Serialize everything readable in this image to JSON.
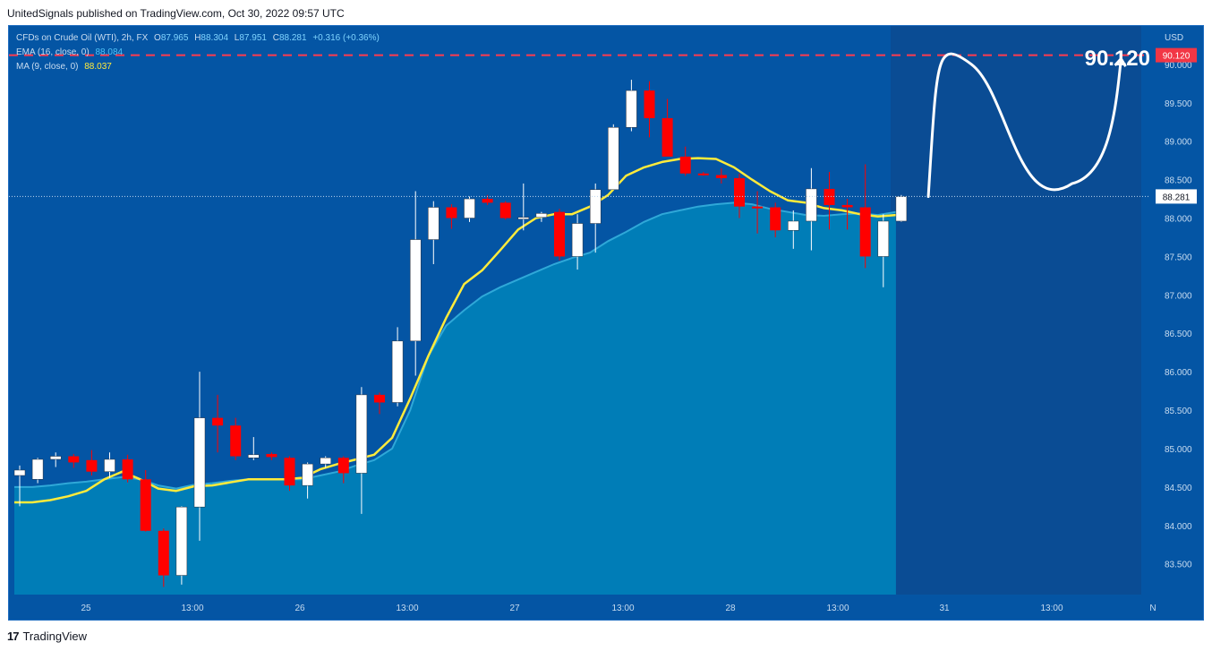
{
  "header": {
    "published": "UnitedSignals published on TradingView.com, Oct 30, 2022 09:57 UTC"
  },
  "legend": {
    "symbol": "CFDs on Crude Oil (WTI), 2h, FX",
    "o_label": "O",
    "o_value": "87.965",
    "h_label": "H",
    "h_value": "88.304",
    "l_label": "L",
    "l_value": "87.951",
    "c_label": "C",
    "c_value": "88.281",
    "change": "+0.316 (+0.36%)",
    "ema_label": "EMA (16, close, 0)",
    "ema_value": "88.084",
    "ma_label": "MA (9, close, 0)",
    "ma_value": "88.037"
  },
  "footer": {
    "brand": "TradingView",
    "brand_mark": "17"
  },
  "colors": {
    "background": "#0455a4",
    "up_candle": "#ffffff",
    "down_candle": "#ff0000",
    "ma_line": "#ffeb3b",
    "ema_area": "#0080b8",
    "target_line": "#ff3b4e"
  },
  "chart_data": {
    "type": "candlestick",
    "currency": "USD",
    "ylim": [
      83.1,
      90.5
    ],
    "y_ticks": [
      "90.000",
      "89.500",
      "89.000",
      "88.500",
      "88.000",
      "87.500",
      "87.000",
      "86.500",
      "86.000",
      "85.500",
      "85.000",
      "84.500",
      "84.000",
      "83.500"
    ],
    "x_ticks": [
      "25",
      "13:00",
      "26",
      "13:00",
      "27",
      "13:00",
      "28",
      "13:00",
      "31",
      "13:00",
      "N"
    ],
    "current_price": "88.281",
    "target_price": "90.120",
    "target_annotation": "90.120",
    "candles": [
      [
        84.65,
        84.78,
        84.25,
        84.72
      ],
      [
        84.6,
        84.88,
        84.55,
        84.86
      ],
      [
        84.86,
        84.95,
        84.76,
        84.9
      ],
      [
        84.9,
        84.93,
        84.75,
        84.82
      ],
      [
        84.85,
        84.98,
        84.65,
        84.7
      ],
      [
        84.7,
        84.95,
        84.62,
        84.86
      ],
      [
        84.86,
        84.92,
        84.56,
        84.6
      ],
      [
        84.6,
        84.72,
        83.92,
        83.93
      ],
      [
        83.93,
        83.96,
        83.2,
        83.35
      ],
      [
        83.35,
        84.25,
        83.23,
        84.24
      ],
      [
        84.24,
        86.0,
        83.8,
        85.4
      ],
      [
        85.4,
        85.7,
        84.95,
        85.3
      ],
      [
        85.3,
        85.4,
        84.85,
        84.9
      ],
      [
        84.88,
        85.15,
        84.85,
        84.92
      ],
      [
        84.93,
        84.95,
        84.85,
        84.89
      ],
      [
        84.88,
        84.9,
        84.45,
        84.52
      ],
      [
        84.52,
        84.82,
        84.35,
        84.8
      ],
      [
        84.8,
        84.9,
        84.75,
        84.88
      ],
      [
        84.88,
        84.9,
        84.55,
        84.68
      ],
      [
        84.68,
        85.8,
        84.15,
        85.7
      ],
      [
        85.7,
        85.73,
        85.45,
        85.6
      ],
      [
        85.6,
        86.58,
        85.55,
        86.4
      ],
      [
        86.4,
        88.35,
        85.95,
        87.72
      ],
      [
        87.72,
        88.22,
        87.4,
        88.14
      ],
      [
        88.14,
        88.18,
        87.86,
        88.0
      ],
      [
        88.0,
        88.28,
        87.95,
        88.25
      ],
      [
        88.25,
        88.3,
        88.17,
        88.2
      ],
      [
        88.2,
        88.22,
        87.98,
        88.0
      ],
      [
        88.0,
        88.45,
        87.84,
        88.01
      ],
      [
        88.01,
        88.08,
        87.95,
        88.06
      ],
      [
        88.08,
        88.12,
        87.45,
        87.5
      ],
      [
        87.5,
        88.05,
        87.33,
        87.93
      ],
      [
        87.93,
        88.45,
        87.55,
        88.37
      ],
      [
        88.37,
        89.22,
        88.37,
        89.18
      ],
      [
        89.18,
        89.8,
        89.13,
        89.66
      ],
      [
        89.66,
        89.78,
        89.05,
        89.3
      ],
      [
        89.3,
        89.55,
        88.85,
        88.8
      ],
      [
        88.8,
        88.93,
        88.55,
        88.58
      ],
      [
        88.58,
        88.6,
        88.55,
        88.56
      ],
      [
        88.56,
        88.65,
        88.45,
        88.52
      ],
      [
        88.52,
        88.58,
        88.0,
        88.15
      ],
      [
        88.15,
        88.35,
        87.8,
        88.14
      ],
      [
        88.14,
        88.2,
        87.75,
        87.84
      ],
      [
        87.84,
        88.1,
        87.6,
        87.96
      ],
      [
        87.96,
        88.65,
        87.58,
        88.38
      ],
      [
        88.38,
        88.6,
        87.85,
        88.17
      ],
      [
        88.17,
        88.25,
        87.85,
        88.14
      ],
      [
        88.14,
        88.7,
        87.35,
        87.5
      ],
      [
        87.5,
        88.05,
        87.1,
        87.96
      ],
      [
        87.96,
        88.3,
        87.95,
        88.28
      ]
    ],
    "ma": [
      84.3,
      84.3,
      84.33,
      84.38,
      84.45,
      84.6,
      84.7,
      84.6,
      84.48,
      84.45,
      84.51,
      84.52,
      84.56,
      84.6,
      84.6,
      84.6,
      84.62,
      84.73,
      84.8,
      84.86,
      84.92,
      85.14,
      85.65,
      86.2,
      86.7,
      87.14,
      87.32,
      87.58,
      87.85,
      88.0,
      88.05,
      88.05,
      88.15,
      88.3,
      88.55,
      88.66,
      88.73,
      88.77,
      88.78,
      88.77,
      88.66,
      88.5,
      88.35,
      88.23,
      88.2,
      88.13,
      88.1,
      88.05,
      88.02,
      88.04
    ],
    "ema": [
      84.5,
      84.5,
      84.52,
      84.55,
      84.57,
      84.6,
      84.63,
      84.6,
      84.52,
      84.48,
      84.53,
      84.55,
      84.58,
      84.6,
      84.6,
      84.6,
      84.6,
      84.65,
      84.7,
      84.78,
      84.85,
      85.0,
      85.5,
      86.2,
      86.6,
      86.8,
      86.98,
      87.1,
      87.2,
      87.3,
      87.4,
      87.48,
      87.55,
      87.7,
      87.82,
      87.95,
      88.05,
      88.1,
      88.15,
      88.18,
      88.2,
      88.18,
      88.12,
      88.08,
      88.04,
      88.03,
      88.05,
      88.06,
      88.04,
      88.08
    ],
    "projection_path": [
      {
        "bar": 50.8,
        "price": 88.28
      },
      {
        "bar": 53.2,
        "price": 90.0
      },
      {
        "bar": 58.8,
        "price": 88.45
      },
      {
        "bar": 61.5,
        "price": 90.05
      }
    ]
  }
}
